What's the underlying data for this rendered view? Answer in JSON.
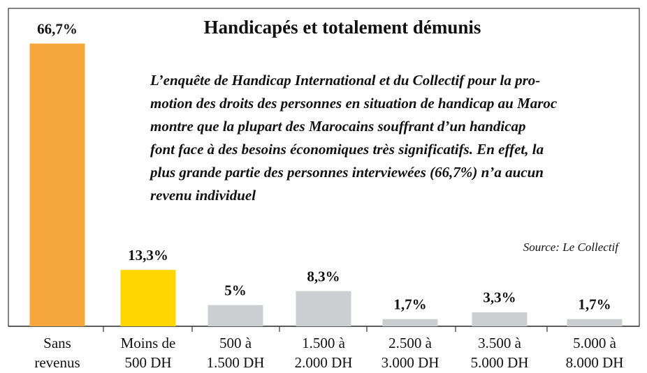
{
  "chart_data": {
    "type": "bar",
    "title": "Handicapés et totalement démunis",
    "subtitle": [
      "L’enquête de Handicap International et du Collectif pour la pro-",
      "motion des droits des personnes en situation de handicap au Maroc",
      "montre que la plupart des Marocains souffrant d’un handicap",
      "font face à des besoins économiques très significatifs. En effet, la",
      "plus grande partie des personnes interviewées (66,7%) n’a aucun",
      "revenu individuel"
    ],
    "source": "Source: Le Collectif",
    "categories": [
      [
        "Sans",
        "revenus"
      ],
      [
        "Moins de",
        "500 DH"
      ],
      [
        "500 à",
        "1.500 DH"
      ],
      [
        "1.500 à",
        "2.000 DH"
      ],
      [
        "2.500 à",
        "3.000 DH"
      ],
      [
        "3.500 à",
        "5.000 DH"
      ],
      [
        "5.000 à",
        "8.000 DH"
      ]
    ],
    "values": [
      66.7,
      13.3,
      5,
      8.3,
      1.7,
      3.3,
      1.7
    ],
    "value_labels": [
      "66,7%",
      "13,3%",
      "5%",
      "8,3%",
      "1,7%",
      "3,3%",
      "1,7%"
    ],
    "colors": [
      "#f5a73b",
      "#ffd600",
      "#cdced1",
      "#cdced1",
      "#cdced1",
      "#cdced1",
      "#cdced1"
    ],
    "ylim": [
      0,
      75
    ]
  }
}
